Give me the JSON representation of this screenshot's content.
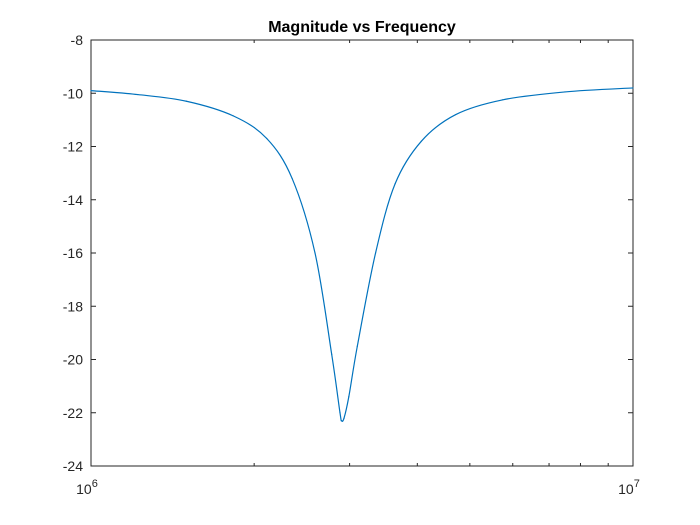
{
  "chart_data": {
    "type": "line",
    "title": "Magnitude vs Frequency",
    "xlabel": "",
    "ylabel": "",
    "xscale": "log",
    "xlim": [
      1000000,
      10000000
    ],
    "ylim": [
      -24,
      -8
    ],
    "grid": false,
    "legend": "none",
    "x_ticks": [
      {
        "value": 1000000,
        "base": "10",
        "exponent": "6"
      },
      {
        "value": 10000000,
        "base": "10",
        "exponent": "7"
      }
    ],
    "y_ticks": [
      {
        "value": -8,
        "label": "-8"
      },
      {
        "value": -10,
        "label": "-10"
      },
      {
        "value": -12,
        "label": "-12"
      },
      {
        "value": -14,
        "label": "-14"
      },
      {
        "value": -16,
        "label": "-16"
      },
      {
        "value": -18,
        "label": "-18"
      },
      {
        "value": -20,
        "label": "-20"
      },
      {
        "value": -22,
        "label": "-22"
      },
      {
        "value": -24,
        "label": "-24"
      }
    ],
    "series": [
      {
        "color": "#0072BD",
        "x": [
          1000000,
          1220000,
          1500000,
          1830000,
          2110000,
          2350000,
          2590000,
          2780000,
          2880000,
          2900000,
          2930000,
          2990000,
          3100000,
          3350000,
          3640000,
          4070000,
          4710000,
          5740000,
          7490000,
          10000000
        ],
        "y": [
          -9.9,
          -10.05,
          -10.3,
          -10.85,
          -11.7,
          -13.2,
          -16.0,
          -19.8,
          -22.0,
          -22.3,
          -22.2,
          -21.4,
          -19.5,
          -16.0,
          -13.4,
          -11.8,
          -10.8,
          -10.25,
          -9.95,
          -9.8
        ]
      }
    ]
  }
}
